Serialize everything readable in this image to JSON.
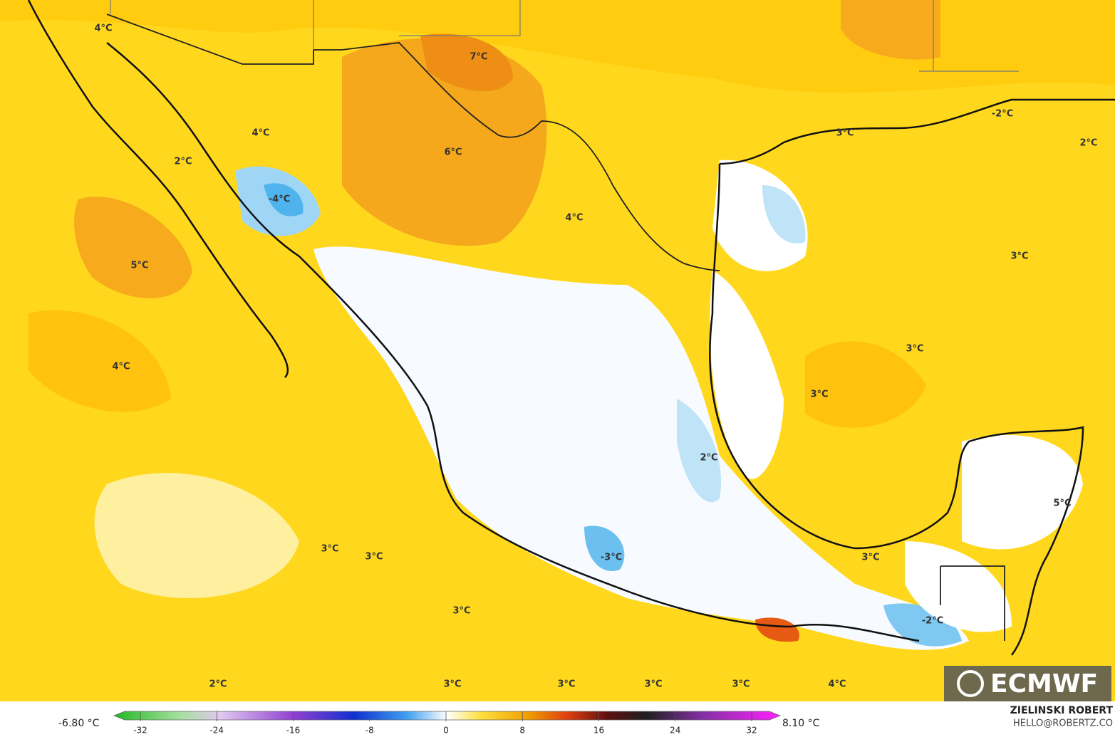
{
  "map": {
    "labels": [
      "4°C",
      "7°C",
      "4°C",
      "6°C",
      "2°C",
      "-4°C",
      "4°C",
      "3°C",
      "-2°C",
      "2°C",
      "5°C",
      "3°C",
      "3°C",
      "4°C",
      "3°C",
      "2°C",
      "5°C",
      "3°C",
      "3°C",
      "-3°C",
      "3°C",
      "3°C",
      "-2°C",
      "2°C",
      "3°C",
      "3°C",
      "3°C",
      "3°C",
      "4°C"
    ],
    "logo": "ECMWF"
  },
  "colorbar": {
    "min_label": "-6.80 °C",
    "max_label": "8.10 °C",
    "ticks": [
      -32,
      -24,
      -16,
      -8,
      0,
      8,
      16,
      24,
      32
    ]
  },
  "credit": {
    "author": "ZIELINSKI ROBERT",
    "email": "HELLO@ROBERTZ.CO"
  }
}
